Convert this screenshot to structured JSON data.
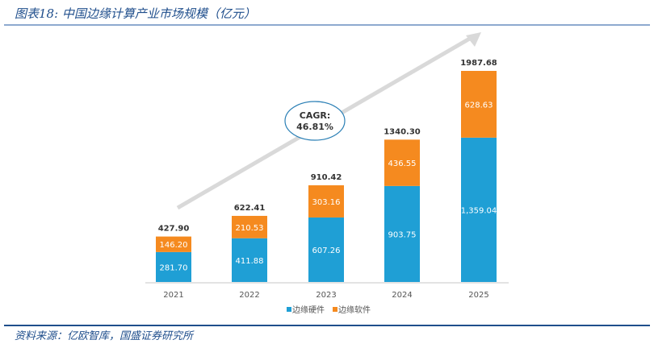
{
  "header": {
    "title": "图表18:  中国边缘计算产业市场规模（亿元）"
  },
  "footer": {
    "source": "资料来源：亿欧智库，国盛证券研究所"
  },
  "chart_data": {
    "type": "bar",
    "stacked": true,
    "title": "中国边缘计算产业市场规模（亿元）",
    "categories": [
      "2021",
      "2022",
      "2023",
      "2024",
      "2025"
    ],
    "series": [
      {
        "name": "边缘硬件",
        "color": "#1f9fd5",
        "values": [
          281.7,
          411.88,
          607.26,
          903.75,
          1359.04
        ],
        "labels": [
          "281.70",
          "411.88",
          "607.26",
          "903.75",
          "1,359.04"
        ]
      },
      {
        "name": "边缘软件",
        "color": "#f58a1f",
        "values": [
          146.2,
          210.53,
          303.16,
          436.55,
          628.63
        ],
        "labels": [
          "146.20",
          "210.53",
          "303.16",
          "436.55",
          "628.63"
        ]
      }
    ],
    "totals": [
      "427.90",
      "622.41",
      "910.42",
      "1340.30",
      "1987.68"
    ],
    "annotation": {
      "text_line1": "CAGR:",
      "text_line2": "46.81%"
    },
    "ylim": [
      0,
      1987.68
    ],
    "legend": "bottom"
  }
}
